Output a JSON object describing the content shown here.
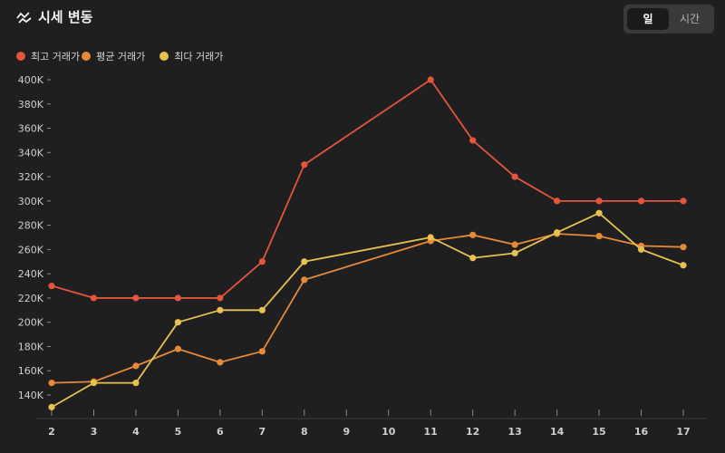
{
  "header": {
    "title": "시세 변동",
    "icon": "trend-icon"
  },
  "toggle": {
    "options": [
      "일",
      "시간"
    ],
    "selected": "일"
  },
  "legend": [
    {
      "label": "최고 거래가",
      "color": "#e4553a"
    },
    {
      "label": "평균 거래가",
      "color": "#e68a3a"
    },
    {
      "label": "최다 거래가",
      "color": "#e8c24f"
    }
  ],
  "chart_data": {
    "type": "line",
    "title": "시세 변동",
    "xlabel": "",
    "ylabel": "",
    "x": [
      2,
      3,
      4,
      5,
      6,
      7,
      8,
      9,
      10,
      11,
      12,
      13,
      14,
      15,
      16,
      17
    ],
    "ylim": [
      125000,
      410000
    ],
    "yticks": [
      140000,
      160000,
      180000,
      200000,
      220000,
      240000,
      260000,
      280000,
      300000,
      320000,
      340000,
      360000,
      380000,
      400000
    ],
    "ytick_labels": [
      "140K",
      "160K",
      "180K",
      "200K",
      "220K",
      "240K",
      "260K",
      "280K",
      "300K",
      "320K",
      "340K",
      "360K",
      "380K",
      "400K"
    ],
    "grid": false,
    "legend_position": "top-left",
    "series": [
      {
        "name": "최고 거래가",
        "color": "#e4553a",
        "points": [
          [
            2,
            230000
          ],
          [
            3,
            220000
          ],
          [
            4,
            220000
          ],
          [
            5,
            220000
          ],
          [
            6,
            220000
          ],
          [
            7,
            250000
          ],
          [
            8,
            330000
          ],
          [
            11,
            400000
          ],
          [
            12,
            350000
          ],
          [
            13,
            320000
          ],
          [
            14,
            300000
          ],
          [
            15,
            300000
          ],
          [
            16,
            300000
          ],
          [
            17,
            300000
          ]
        ]
      },
      {
        "name": "평균 거래가",
        "color": "#e68a3a",
        "points": [
          [
            2,
            150000
          ],
          [
            3,
            151000
          ],
          [
            4,
            164000
          ],
          [
            5,
            178000
          ],
          [
            6,
            167000
          ],
          [
            7,
            176000
          ],
          [
            8,
            235000
          ],
          [
            11,
            267000
          ],
          [
            12,
            272000
          ],
          [
            13,
            264000
          ],
          [
            14,
            273000
          ],
          [
            15,
            271000
          ],
          [
            16,
            263000
          ],
          [
            17,
            262000
          ]
        ]
      },
      {
        "name": "최다 거래가",
        "color": "#e8c24f",
        "points": [
          [
            2,
            130000
          ],
          [
            3,
            150000
          ],
          [
            4,
            150000
          ],
          [
            5,
            200000
          ],
          [
            6,
            210000
          ],
          [
            7,
            210000
          ],
          [
            8,
            250000
          ],
          [
            11,
            270000
          ],
          [
            12,
            253000
          ],
          [
            13,
            257000
          ],
          [
            14,
            274000
          ],
          [
            15,
            290000
          ],
          [
            16,
            260000
          ],
          [
            17,
            247000
          ]
        ]
      }
    ]
  }
}
